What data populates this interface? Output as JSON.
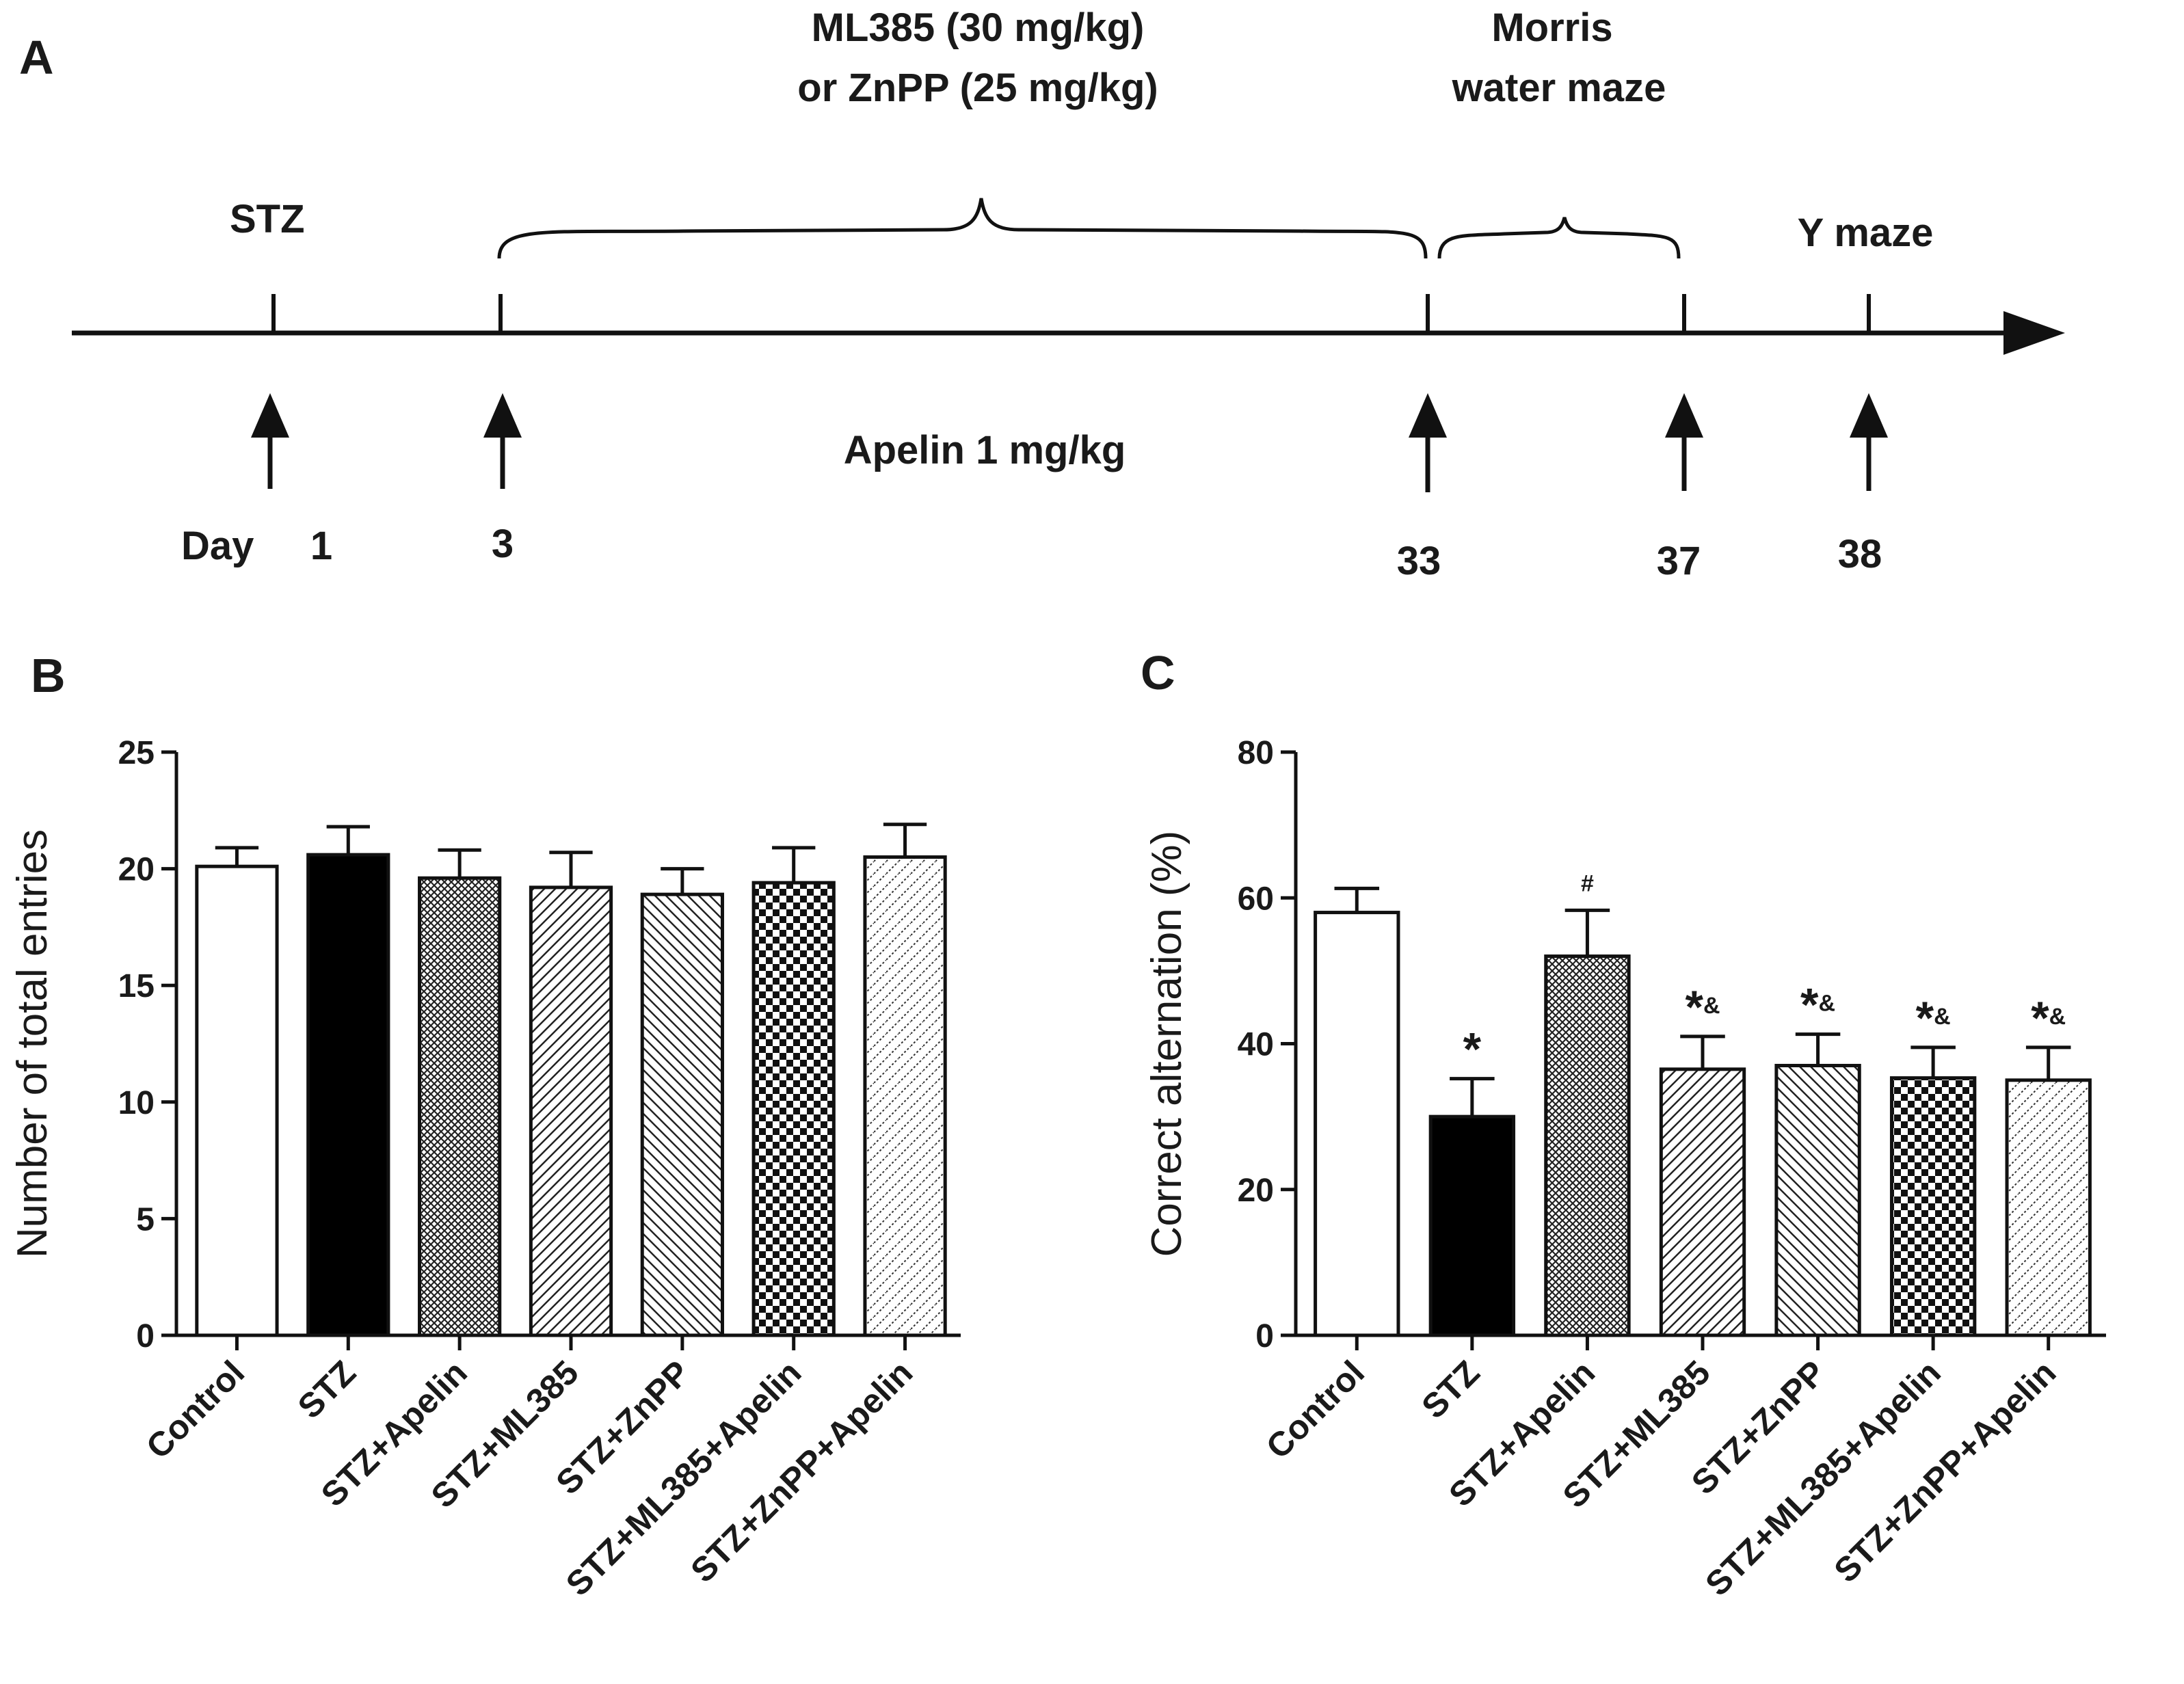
{
  "panels": {
    "a": "A",
    "b": "B",
    "c": "C"
  },
  "timeline": {
    "stz": "STZ",
    "treatment_line1": "ML385 (30 mg/kg)",
    "treatment_line2": "or ZnPP (25 mg/kg)",
    "morris_line1": "Morris",
    "morris_line2": "water maze",
    "ymaze": "Y maze",
    "apelin": "Apelin 1 mg/kg",
    "day_label": "Day",
    "days": [
      "1",
      "3",
      "33",
      "37",
      "38"
    ]
  },
  "chart_data": [
    {
      "type": "bar",
      "panel": "B",
      "title": "",
      "xlabel": "",
      "ylabel": "Number of total entries",
      "ylim": [
        0,
        25
      ],
      "yticks": [
        0,
        5,
        10,
        15,
        20,
        25
      ],
      "categories": [
        "Control",
        "STZ",
        "STZ+Apelin",
        "STZ+ML385",
        "STZ+ZnPP",
        "STZ+ML385+Apelin",
        "STZ+ZnPP+Apelin"
      ],
      "values": [
        20.1,
        20.6,
        19.6,
        19.2,
        18.9,
        19.4,
        20.5
      ],
      "errors": [
        0.8,
        1.2,
        1.2,
        1.5,
        1.1,
        1.5,
        1.4
      ],
      "significance": [
        "",
        "",
        "",
        "",
        "",
        "",
        ""
      ],
      "patterns": [
        "white",
        "black",
        "crosshatch",
        "diag-right",
        "diag-left",
        "checker",
        "dotted-diag"
      ]
    },
    {
      "type": "bar",
      "panel": "C",
      "title": "",
      "xlabel": "",
      "ylabel": "Correct alternation (%)",
      "ylim": [
        0,
        80
      ],
      "yticks": [
        0,
        20,
        40,
        60,
        80
      ],
      "categories": [
        "Control",
        "STZ",
        "STZ+Apelin",
        "STZ+ML385",
        "STZ+ZnPP",
        "STZ+ML385+Apelin",
        "STZ+ZnPP+Apelin"
      ],
      "values": [
        58,
        30,
        52,
        36.5,
        37,
        35.3,
        35
      ],
      "errors": [
        3.3,
        5.2,
        6.3,
        4.5,
        4.3,
        4.2,
        4.5
      ],
      "significance": [
        "",
        "*",
        "#",
        "*&",
        "*&",
        "*&",
        "*&"
      ],
      "patterns": [
        "white",
        "black",
        "crosshatch",
        "diag-right",
        "diag-left",
        "checker",
        "dotted-diag"
      ]
    }
  ]
}
